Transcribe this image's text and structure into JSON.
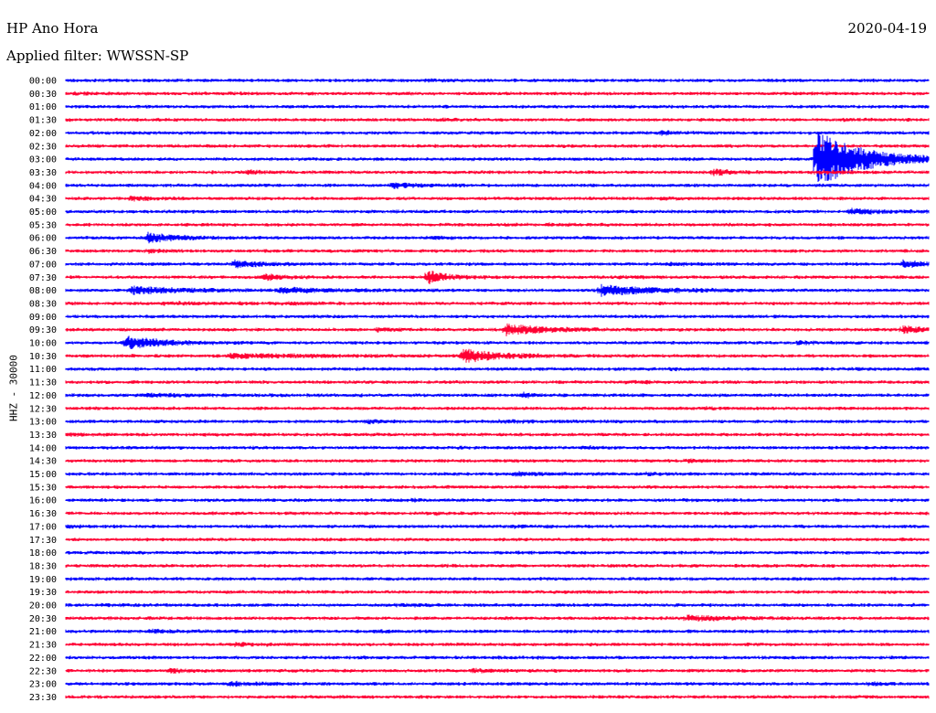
{
  "header": {
    "station": "HP Ano Hora",
    "date": "2020-04-19",
    "filter": "Applied filter: WWSSN-SP"
  },
  "chart_data": {
    "type": "line",
    "title": "HP Ano Hora",
    "ylabel": "HHZ - 30000",
    "colors": [
      "#0000ff",
      "#ff0033"
    ],
    "rows": [
      "00:00",
      "00:30",
      "01:00",
      "01:30",
      "02:00",
      "02:30",
      "03:00",
      "03:30",
      "04:00",
      "04:30",
      "05:00",
      "05:30",
      "06:00",
      "06:30",
      "07:00",
      "07:30",
      "08:00",
      "08:30",
      "09:00",
      "09:30",
      "10:00",
      "10:30",
      "11:00",
      "11:30",
      "12:00",
      "12:30",
      "13:00",
      "13:30",
      "14:00",
      "14:30",
      "15:00",
      "15:30",
      "16:00",
      "16:30",
      "17:00",
      "17:30",
      "18:00",
      "18:30",
      "19:00",
      "19:30",
      "20:00",
      "20:30",
      "21:00",
      "21:30",
      "22:00",
      "22:30",
      "23:00",
      "23:30"
    ],
    "row_duration_minutes": 30,
    "events": [
      {
        "row": 0,
        "t": 0.42,
        "amp": 0.15,
        "dur": 0.03
      },
      {
        "row": 1,
        "t": 0.01,
        "amp": 0.2,
        "dur": 0.04
      },
      {
        "row": 1,
        "t": 0.19,
        "amp": 0.15,
        "dur": 0.01
      },
      {
        "row": 2,
        "t": 0.99,
        "amp": 0.3,
        "dur": 0.01
      },
      {
        "row": 3,
        "t": 0.43,
        "amp": 0.3,
        "dur": 0.01
      },
      {
        "row": 3,
        "t": 0.9,
        "amp": 0.15,
        "dur": 0.06
      },
      {
        "row": 4,
        "t": 0.69,
        "amp": 0.6,
        "dur": 0.02
      },
      {
        "row": 7,
        "t": 0.21,
        "amp": 0.5,
        "dur": 0.03
      },
      {
        "row": 7,
        "t": 0.75,
        "amp": 1.2,
        "dur": 0.02
      },
      {
        "row": 7,
        "t": 0.87,
        "amp": 0.4,
        "dur": 0.03
      },
      {
        "row": 8,
        "t": 0.38,
        "amp": 1.3,
        "dur": 0.02
      },
      {
        "row": 8,
        "t": 0.445,
        "amp": 0.3,
        "dur": 0.01
      },
      {
        "row": 9,
        "t": 0.075,
        "amp": 0.8,
        "dur": 0.02
      },
      {
        "row": 9,
        "t": 0.69,
        "amp": 0.3,
        "dur": 0.02
      },
      {
        "row": 10,
        "t": 0.91,
        "amp": 0.8,
        "dur": 0.04
      },
      {
        "row": 11,
        "t": 0.56,
        "amp": 0.3,
        "dur": 0.03
      },
      {
        "row": 12,
        "t": 0.095,
        "amp": 2.0,
        "dur": 0.03
      },
      {
        "row": 12,
        "t": 0.42,
        "amp": 0.3,
        "dur": 0.03
      },
      {
        "row": 13,
        "t": 0.095,
        "amp": 0.8,
        "dur": 0.01
      },
      {
        "row": 14,
        "t": 0.195,
        "amp": 1.4,
        "dur": 0.03
      },
      {
        "row": 14,
        "t": 0.7,
        "amp": 0.3,
        "dur": 0.03
      },
      {
        "row": 14,
        "t": 0.97,
        "amp": 1.2,
        "dur": 0.03
      },
      {
        "row": 15,
        "t": 0.23,
        "amp": 1.2,
        "dur": 0.02
      },
      {
        "row": 15,
        "t": 0.42,
        "amp": 2.8,
        "dur": 0.02
      },
      {
        "row": 15,
        "t": 0.64,
        "amp": 0.3,
        "dur": 0.03
      },
      {
        "row": 16,
        "t": 0.075,
        "amp": 1.4,
        "dur": 0.06
      },
      {
        "row": 16,
        "t": 0.25,
        "amp": 1.1,
        "dur": 0.04
      },
      {
        "row": 16,
        "t": 0.62,
        "amp": 2.0,
        "dur": 0.06
      },
      {
        "row": 17,
        "t": 0.11,
        "amp": 0.4,
        "dur": 0.07
      },
      {
        "row": 17,
        "t": 0.26,
        "amp": 0.3,
        "dur": 0.02
      },
      {
        "row": 19,
        "t": 0.36,
        "amp": 0.5,
        "dur": 0.02
      },
      {
        "row": 19,
        "t": 0.51,
        "amp": 2.3,
        "dur": 0.04
      },
      {
        "row": 19,
        "t": 0.97,
        "amp": 1.2,
        "dur": 0.03
      },
      {
        "row": 20,
        "t": 0.07,
        "amp": 2.6,
        "dur": 0.04
      },
      {
        "row": 20,
        "t": 0.85,
        "amp": 0.6,
        "dur": 0.01
      },
      {
        "row": 21,
        "t": 0.19,
        "amp": 0.7,
        "dur": 0.1
      },
      {
        "row": 21,
        "t": 0.46,
        "amp": 2.6,
        "dur": 0.04
      },
      {
        "row": 22,
        "t": 0.7,
        "amp": 0.5,
        "dur": 0.01
      },
      {
        "row": 22,
        "t": 0.92,
        "amp": 0.4,
        "dur": 0.01
      },
      {
        "row": 23,
        "t": 0.65,
        "amp": 0.3,
        "dur": 0.02
      },
      {
        "row": 24,
        "t": 0.09,
        "amp": 0.3,
        "dur": 0.08
      },
      {
        "row": 24,
        "t": 0.53,
        "amp": 0.9,
        "dur": 0.01
      },
      {
        "row": 25,
        "t": 0.74,
        "amp": 0.2,
        "dur": 0.03
      },
      {
        "row": 26,
        "t": 0.35,
        "amp": 0.5,
        "dur": 0.02
      },
      {
        "row": 26,
        "t": 0.5,
        "amp": 0.3,
        "dur": 0.06
      },
      {
        "row": 27,
        "t": 0.0,
        "amp": 0.3,
        "dur": 0.03
      },
      {
        "row": 28,
        "t": 0.6,
        "amp": 0.5,
        "dur": 0.02
      },
      {
        "row": 29,
        "t": 0.72,
        "amp": 0.5,
        "dur": 0.01
      },
      {
        "row": 30,
        "t": 0.52,
        "amp": 0.6,
        "dur": 0.03
      },
      {
        "row": 30,
        "t": 0.67,
        "amp": 0.3,
        "dur": 0.03
      },
      {
        "row": 32,
        "t": 0.4,
        "amp": 0.4,
        "dur": 0.01
      },
      {
        "row": 33,
        "t": 0.43,
        "amp": 0.3,
        "dur": 0.01
      },
      {
        "row": 34,
        "t": 0.0,
        "amp": 0.3,
        "dur": 0.02
      },
      {
        "row": 34,
        "t": 0.52,
        "amp": 0.3,
        "dur": 0.03
      },
      {
        "row": 40,
        "t": 0.04,
        "amp": 0.3,
        "dur": 0.02
      },
      {
        "row": 40,
        "t": 0.38,
        "amp": 0.3,
        "dur": 0.03
      },
      {
        "row": 41,
        "t": 0.72,
        "amp": 0.9,
        "dur": 0.05
      },
      {
        "row": 42,
        "t": 0.1,
        "amp": 0.5,
        "dur": 0.04
      },
      {
        "row": 42,
        "t": 0.36,
        "amp": 0.5,
        "dur": 0.01
      },
      {
        "row": 43,
        "t": 0.195,
        "amp": 0.5,
        "dur": 0.03
      },
      {
        "row": 44,
        "t": 0.5,
        "amp": 0.2,
        "dur": 0.02
      },
      {
        "row": 45,
        "t": 0.12,
        "amp": 0.8,
        "dur": 0.02
      },
      {
        "row": 45,
        "t": 0.47,
        "amp": 0.4,
        "dur": 0.04
      },
      {
        "row": 46,
        "t": 0.19,
        "amp": 0.7,
        "dur": 0.03
      },
      {
        "row": 46,
        "t": 0.93,
        "amp": 0.4,
        "dur": 0.03
      }
    ],
    "big_event": {
      "row": 6,
      "t": 0.87,
      "amp": 12.5,
      "dur": 0.05
    }
  }
}
